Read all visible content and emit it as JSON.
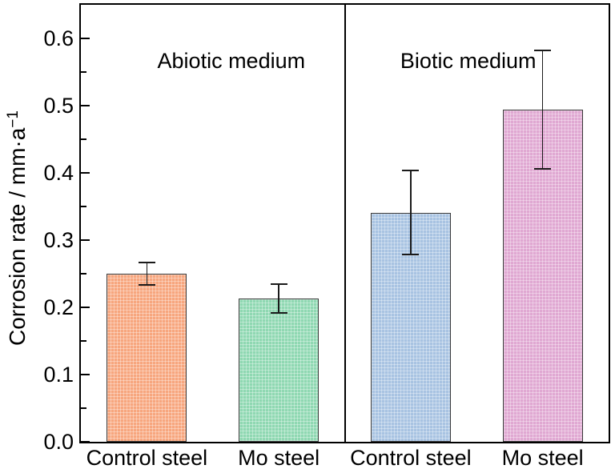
{
  "chart_data": {
    "type": "bar",
    "title": "",
    "xlabel": "",
    "ylabel_base": "Corrosion rate / mm·a",
    "ylabel_sup": "−1",
    "ylabel_full": "Corrosion rate / mm·a⁻¹",
    "ylim": [
      0,
      0.65
    ],
    "grid": false,
    "legend": "none",
    "yticks": [
      {
        "v": 0.0,
        "label": "0.0"
      },
      {
        "v": 0.1,
        "label": "0.1"
      },
      {
        "v": 0.2,
        "label": "0.2"
      },
      {
        "v": 0.3,
        "label": "0.3"
      },
      {
        "v": 0.4,
        "label": "0.4"
      },
      {
        "v": 0.5,
        "label": "0.5"
      },
      {
        "v": 0.6,
        "label": "0.6"
      }
    ],
    "yticks_minor": [
      0.05,
      0.15,
      0.25,
      0.35,
      0.45,
      0.55
    ],
    "groups": [
      {
        "label": "Abiotic medium",
        "bars": [
          {
            "category": "Control steel",
            "value": 0.25,
            "error": 0.017,
            "color": "#F7A67E"
          },
          {
            "category": "Mo steel",
            "value": 0.213,
            "error": 0.021,
            "color": "#8FD8B2"
          }
        ]
      },
      {
        "label": "Biotic medium",
        "bars": [
          {
            "category": "Control steel",
            "value": 0.341,
            "error": 0.062,
            "color": "#A8C3E2"
          },
          {
            "category": "Mo steel",
            "value": 0.494,
            "error": 0.088,
            "color": "#E0A8D2"
          }
        ]
      }
    ],
    "colors": {
      "bar_outline": "#3a3a3a",
      "error_bar": "#1a1a1a",
      "axis": "#000000",
      "background": "#ffffff"
    }
  }
}
